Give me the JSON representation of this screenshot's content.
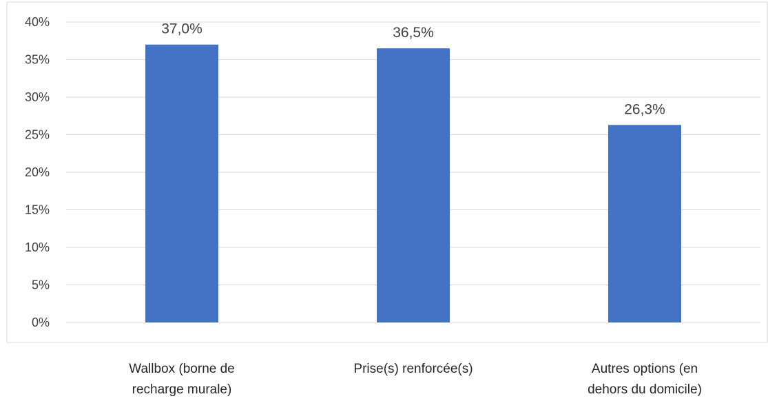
{
  "chart_data": {
    "type": "bar",
    "title": "",
    "xlabel": "",
    "ylabel": "",
    "categories": [
      [
        "Wallbox (borne de",
        "recharge murale)"
      ],
      [
        "Prise(s) renforcée(s)"
      ],
      [
        "Autres options (en",
        "dehors du domicile)"
      ]
    ],
    "values": [
      37.0,
      36.5,
      26.3
    ],
    "value_labels": [
      "37,0%",
      "36,5%",
      "26,3%"
    ],
    "ylim": [
      0,
      40
    ],
    "yticks": [
      0,
      5,
      10,
      15,
      20,
      25,
      30,
      35,
      40
    ],
    "ytick_labels": [
      "0%",
      "5%",
      "10%",
      "15%",
      "20%",
      "25%",
      "30%",
      "35%",
      "40%"
    ],
    "grid": true,
    "legend": "none",
    "colors": {
      "bar": "#4472C4",
      "grid": "#D9D9D9",
      "frame": "#D9D9D9"
    }
  }
}
